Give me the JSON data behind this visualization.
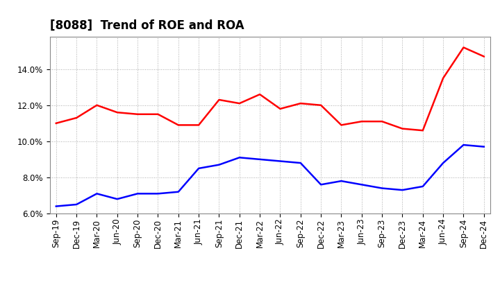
{
  "title": "[8088]  Trend of ROE and ROA",
  "x_labels": [
    "Sep-19",
    "Dec-19",
    "Mar-20",
    "Jun-20",
    "Sep-20",
    "Dec-20",
    "Mar-21",
    "Jun-21",
    "Sep-21",
    "Dec-21",
    "Mar-22",
    "Jun-22",
    "Sep-22",
    "Dec-22",
    "Mar-23",
    "Jun-23",
    "Sep-23",
    "Dec-23",
    "Mar-24",
    "Jun-24",
    "Sep-24",
    "Dec-24"
  ],
  "roe": [
    11.0,
    11.3,
    12.0,
    11.6,
    11.5,
    11.5,
    10.9,
    10.9,
    12.3,
    12.1,
    12.6,
    11.8,
    12.1,
    12.0,
    10.9,
    11.1,
    11.1,
    10.7,
    10.6,
    13.5,
    15.2,
    14.7
  ],
  "roa": [
    6.4,
    6.5,
    7.1,
    6.8,
    7.1,
    7.1,
    7.2,
    8.5,
    8.7,
    9.1,
    9.0,
    8.9,
    8.8,
    7.6,
    7.8,
    7.6,
    7.4,
    7.3,
    7.5,
    8.8,
    9.8,
    9.7
  ],
  "roe_color": "#ff0000",
  "roa_color": "#0000ff",
  "ylim": [
    6.0,
    15.8
  ],
  "yticks": [
    6.0,
    8.0,
    10.0,
    12.0,
    14.0
  ],
  "background_color": "#ffffff",
  "grid_color": "#aaaaaa",
  "title_fontsize": 12,
  "legend_fontsize": 10,
  "tick_fontsize": 8.5,
  "line_width": 1.8
}
